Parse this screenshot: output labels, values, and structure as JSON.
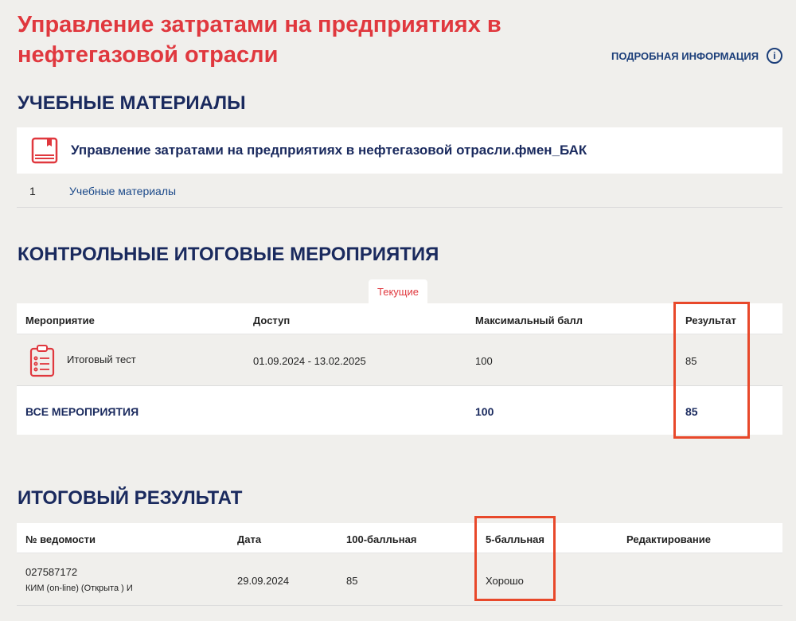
{
  "header": {
    "title": "Управление затратами на предприятиях в нефтегазовой отрасли",
    "more_label": "ПОДРОБНАЯ ИНФОРМАЦИЯ",
    "info_icon": "i"
  },
  "materials": {
    "heading": "УЧЕБНЫЕ МАТЕРИАЛЫ",
    "card_title": "Управление затратами на предприятиях в нефтегазовой отрасли.фмен_БАК",
    "rows": [
      {
        "num": "1",
        "label": "Учебные материалы"
      }
    ]
  },
  "events": {
    "heading": "КОНТРОЛЬНЫЕ ИТОГОВЫЕ МЕРОПРИЯТИЯ",
    "tab": "Текущие",
    "columns": [
      "Мероприятие",
      "Доступ",
      "Максимальный балл",
      "Результат"
    ],
    "rows": [
      {
        "name": "Итоговый тест",
        "access": "01.09.2024 - 13.02.2025",
        "max": "100",
        "result": "85"
      }
    ],
    "total": {
      "label": "ВСЕ МЕРОПРИЯТИЯ",
      "max": "100",
      "result": "85"
    }
  },
  "final": {
    "heading": "ИТОГОВЫЙ РЕЗУЛЬТАТ",
    "columns": [
      "№ ведомости",
      "Дата",
      "100-балльная",
      "5-балльная",
      "Редактирование"
    ],
    "rows": [
      {
        "number": "027587172",
        "type": "КИМ (on-line) (Открыта ) И",
        "date": "29.09.2024",
        "score100": "85",
        "score5": "Хорошо"
      }
    ]
  },
  "colors": {
    "accent": "#e0383e",
    "navy": "#1a2a5e",
    "highlight": "#e8482a"
  }
}
